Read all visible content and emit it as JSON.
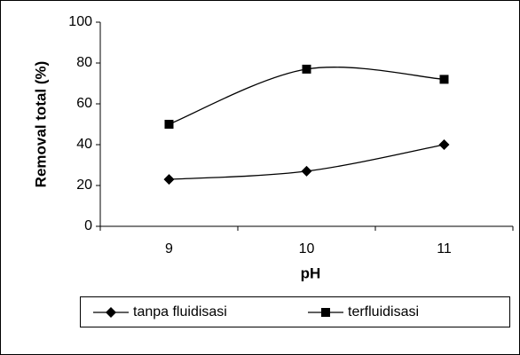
{
  "chart_data": {
    "type": "line",
    "categories": [
      "9",
      "10",
      "11"
    ],
    "series": [
      {
        "name": "tanpa fluidisasi",
        "color": "#000000",
        "marker": "diamond",
        "values": [
          23,
          27,
          40
        ]
      },
      {
        "name": "terfluidisasi",
        "color": "#000000",
        "marker": "square",
        "values": [
          50,
          77,
          72
        ]
      }
    ],
    "ylim": [
      0,
      100
    ],
    "yticks": [
      0,
      20,
      40,
      60,
      80,
      100
    ],
    "x_label": "pH",
    "y_label": "Removal total (%)",
    "grid": false,
    "legend": "bottom",
    "smooth": true
  }
}
